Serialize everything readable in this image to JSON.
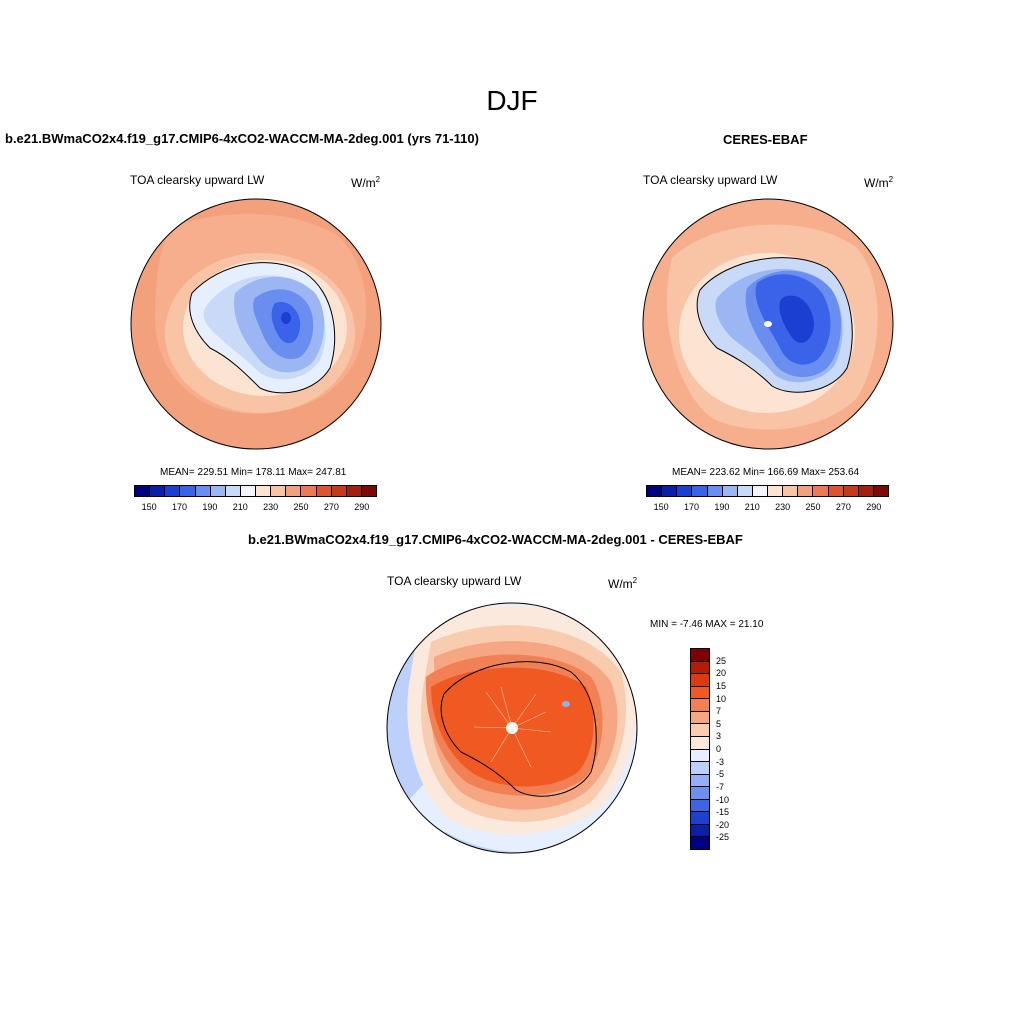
{
  "season": "DJF",
  "panel_model": {
    "title": "b.e21.BWmaCO2x4.f19_g17.CMIP6-4xCO2-WACCM-MA-2deg.001 (yrs 71-110)",
    "variable": "TOA clearsky upward LW",
    "units": "W/m",
    "units_sup": "2",
    "stats": "MEAN= 229.51  Min= 178.11  Max= 247.81"
  },
  "panel_obs": {
    "title": "CERES-EBAF",
    "variable": "TOA clearsky upward LW",
    "units": "W/m",
    "units_sup": "2",
    "stats": "MEAN= 223.62  Min= 166.69  Max= 253.64"
  },
  "panel_diff": {
    "title": "b.e21.BWmaCO2x4.f19_g17.CMIP6-4xCO2-WACCM-MA-2deg.001 - CERES-EBAF",
    "variable": "TOA clearsky upward LW",
    "units": "W/m",
    "units_sup": "2",
    "stats": "MIN =  -7.46 MAX =  21.10"
  },
  "abs_colorbar": {
    "colors": [
      "#00007f",
      "#0a1fa6",
      "#1b3fd0",
      "#3a63ea",
      "#6a8ef0",
      "#9cb6f4",
      "#c9d9f8",
      "#f5f5ff",
      "#fde3d2",
      "#f9c4a5",
      "#f3a07c",
      "#eb7b56",
      "#dd5530",
      "#c43a1c",
      "#a3200f",
      "#7a0a04"
    ],
    "tick_labels": [
      "150",
      "170",
      "190",
      "210",
      "230",
      "250",
      "270",
      "290"
    ]
  },
  "diff_colorbar": {
    "colors": [
      "#7f0000",
      "#b21e05",
      "#db3a10",
      "#f05a22",
      "#f28055",
      "#f6a682",
      "#f9ccb0",
      "#fbe9dd",
      "#e6efff",
      "#bcd0fb",
      "#93b0f6",
      "#6c8ff0",
      "#3e64e5",
      "#1f3fcf",
      "#0a20a8",
      "#000082"
    ],
    "tick_labels": [
      "25",
      "20",
      "15",
      "10",
      "7",
      "5",
      "3",
      "0",
      "-3",
      "-5",
      "-7",
      "-10",
      "-15",
      "-20",
      "-25"
    ]
  }
}
